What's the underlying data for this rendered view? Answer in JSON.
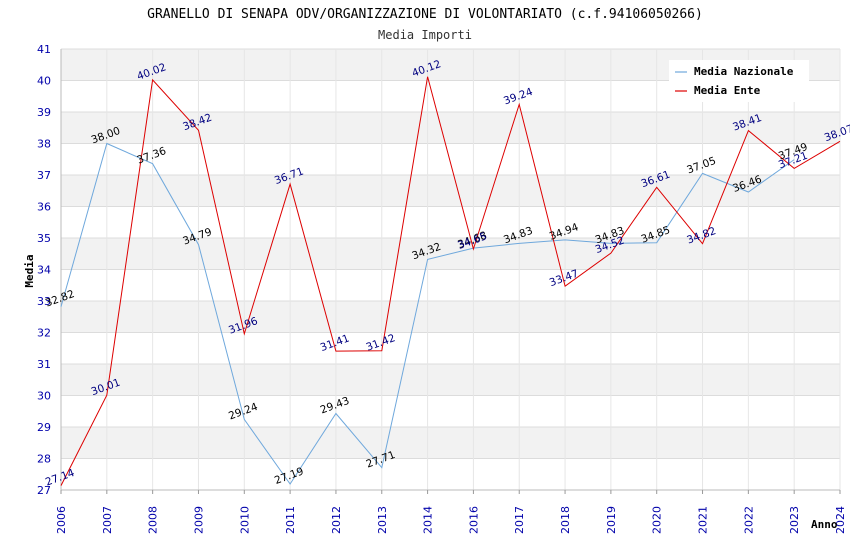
{
  "chart_data": {
    "type": "line",
    "title": "GRANELLO DI SENAPA ODV/ORGANIZZAZIONE DI VOLONTARIATO (c.f.94106050266)",
    "subtitle": "Media Importi",
    "xlabel": "Anno",
    "ylabel": "Media",
    "ylim": [
      27,
      41
    ],
    "yticks": [
      "27",
      "28",
      "29",
      "30",
      "31",
      "32",
      "33",
      "34",
      "35",
      "36",
      "37",
      "38",
      "39",
      "40",
      "41"
    ],
    "categories": [
      "2006",
      "2007",
      "2008",
      "2009",
      "2010",
      "2011",
      "2012",
      "2013",
      "2014",
      "2016",
      "2017",
      "2018",
      "2019",
      "2020",
      "2021",
      "2022",
      "2023",
      "2024"
    ],
    "legend_position": "top-right",
    "series": [
      {
        "name": "Media Nazionale",
        "color": "#6fa8dc",
        "label_color": "#000000",
        "values": [
          32.82,
          38.0,
          37.36,
          34.79,
          29.24,
          27.19,
          29.43,
          27.71,
          34.32,
          34.68,
          34.83,
          34.94,
          34.83,
          34.85,
          37.05,
          36.46,
          37.49,
          null
        ],
        "labels": [
          "32.82",
          "38.00",
          "37.36",
          "34.79",
          "29.24",
          "27.19",
          "29.43",
          "27.71",
          "34.32",
          "34.68",
          "34.83",
          "34.94",
          "34.83",
          "34.85",
          "37.05",
          "36.46",
          "37.49",
          ""
        ]
      },
      {
        "name": "Media Ente",
        "color": "#dd0000",
        "label_color": "#000080",
        "values": [
          27.14,
          30.01,
          40.02,
          38.42,
          31.96,
          36.71,
          31.41,
          31.42,
          40.12,
          34.65,
          39.24,
          33.47,
          34.52,
          36.61,
          34.82,
          38.41,
          37.21,
          38.07
        ],
        "labels": [
          "27.14",
          "30.01",
          "40.02",
          "38.42",
          "31.96",
          "36.71",
          "31.41",
          "31.42",
          "40.12",
          "34.65",
          "39.24",
          "33.47",
          "34.52",
          "36.61",
          "34.82",
          "38.41",
          "37.21",
          "38.07"
        ]
      }
    ]
  }
}
